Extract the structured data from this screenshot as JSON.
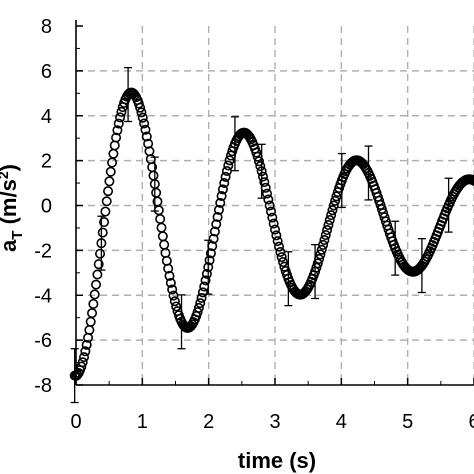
{
  "chart_data": {
    "type": "scatter",
    "xlabel": "time (s)",
    "ylabel": "a",
    "ylabel_sub": "T",
    "ylabel_unit": " (m/s",
    "ylabel_sup": "2",
    "ylabel_close": ")",
    "xlim": [
      0,
      6
    ],
    "ylim": [
      -8,
      8
    ],
    "x_ticks": [
      "0",
      "1",
      "2",
      "3",
      "4",
      "5",
      "6"
    ],
    "y_ticks": [
      "8",
      "6",
      "4",
      "2",
      "0",
      "-2",
      "-4",
      "-6",
      "-8"
    ],
    "grid": true,
    "grid_style": "dashed",
    "marker": "open-circle",
    "error_bars": "sparse",
    "series": [
      {
        "model": "damped-cosine",
        "offset": -0.7,
        "amplitude": 6.9,
        "decay_rate": 0.22,
        "angular_freq": 3.7,
        "phase": 3.14159,
        "t_start": -0.02,
        "t_end": 6.0,
        "n_points": 300,
        "error_bar_every": 20,
        "error_bar_size": 1.2
      }
    ]
  }
}
